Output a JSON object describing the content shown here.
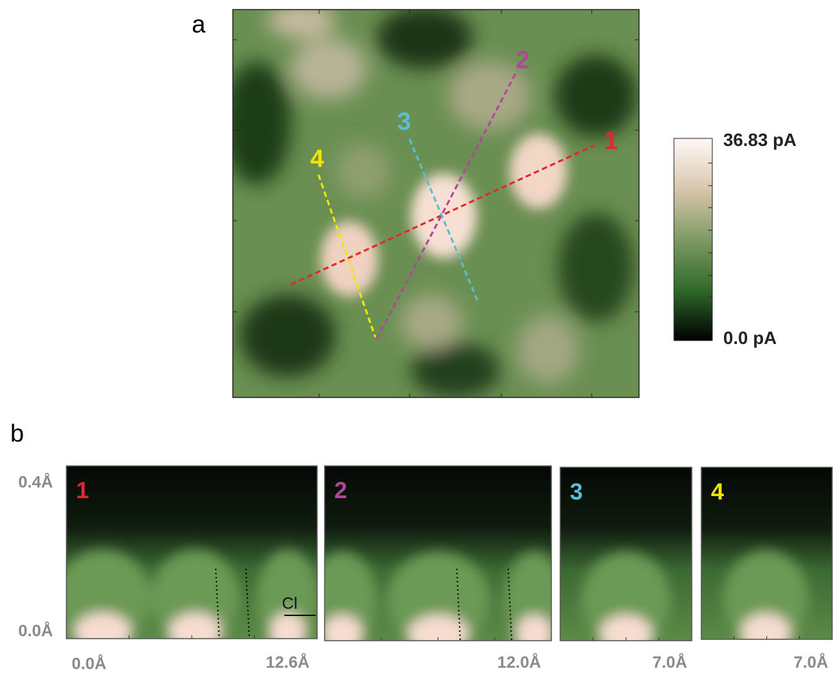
{
  "panel_a": {
    "label": "a",
    "line_labels": [
      {
        "text": "1",
        "color": "#e0282e"
      },
      {
        "text": "2",
        "color": "#b0479b"
      },
      {
        "text": "3",
        "color": "#5bbdd0"
      },
      {
        "text": "4",
        "color": "#f2e500"
      }
    ],
    "colorbar": {
      "max_label": "36.83 pA",
      "min_label": "0.0 pA"
    }
  },
  "panel_b": {
    "label": "b",
    "y_labels": {
      "top": "0.4Å",
      "bottom": "0.0Å"
    },
    "x_start_label": "0.0Å",
    "panels": [
      {
        "label": "1",
        "x_end": "12.6Å",
        "annotation": "Cl"
      },
      {
        "label": "2",
        "x_end": "12.0Å"
      },
      {
        "label": "3",
        "x_end": "7.0Å"
      },
      {
        "label": "4",
        "x_end": "7.0Å"
      }
    ]
  }
}
